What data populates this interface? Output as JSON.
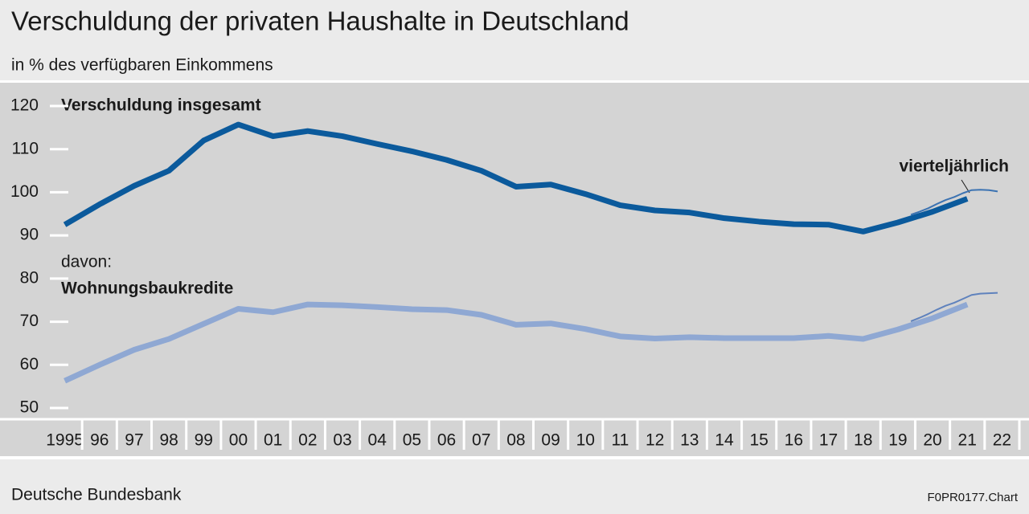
{
  "chart_data": {
    "type": "line",
    "title": "Verschuldung der privaten Haushalte in Deutschland",
    "subtitle": "in % des verfügbaren Einkommens",
    "source": "Deutsche Bundesbank",
    "chart_id": "F0PR0177.Chart",
    "annotations": {
      "davon": "davon:",
      "quarterly": "vierteljährlich"
    },
    "xlim": [
      1994.5,
      2022.5
    ],
    "xticks": [
      {
        "value": 1995,
        "label": "1995"
      },
      {
        "value": 1996,
        "label": "96"
      },
      {
        "value": 1997,
        "label": "97"
      },
      {
        "value": 1998,
        "label": "98"
      },
      {
        "value": 1999,
        "label": "99"
      },
      {
        "value": 2000,
        "label": "00"
      },
      {
        "value": 2001,
        "label": "01"
      },
      {
        "value": 2002,
        "label": "02"
      },
      {
        "value": 2003,
        "label": "03"
      },
      {
        "value": 2004,
        "label": "04"
      },
      {
        "value": 2005,
        "label": "05"
      },
      {
        "value": 2006,
        "label": "06"
      },
      {
        "value": 2007,
        "label": "07"
      },
      {
        "value": 2008,
        "label": "08"
      },
      {
        "value": 2009,
        "label": "09"
      },
      {
        "value": 2010,
        "label": "10"
      },
      {
        "value": 2011,
        "label": "11"
      },
      {
        "value": 2012,
        "label": "12"
      },
      {
        "value": 2013,
        "label": "13"
      },
      {
        "value": 2014,
        "label": "14"
      },
      {
        "value": 2015,
        "label": "15"
      },
      {
        "value": 2016,
        "label": "16"
      },
      {
        "value": 2017,
        "label": "17"
      },
      {
        "value": 2018,
        "label": "18"
      },
      {
        "value": 2019,
        "label": "19"
      },
      {
        "value": 2020,
        "label": "20"
      },
      {
        "value": 2021,
        "label": "21"
      },
      {
        "value": 2022,
        "label": "22"
      }
    ],
    "ylim": [
      50,
      120
    ],
    "yticks": [
      50,
      60,
      70,
      80,
      90,
      100,
      110,
      120
    ],
    "series": [
      {
        "name": "Verschuldung insgesamt",
        "color": "#0b5a9c",
        "width": 7,
        "x": [
          1995,
          1996,
          1997,
          1998,
          1999,
          2000,
          2001,
          2002,
          2003,
          2004,
          2005,
          2006,
          2007,
          2008,
          2009,
          2010,
          2011,
          2012,
          2013,
          2014,
          2015,
          2016,
          2017,
          2018,
          2019,
          2020,
          2021
        ],
        "values": [
          92.5,
          97.2,
          101.5,
          105,
          112,
          115.7,
          113,
          114.2,
          113,
          111.2,
          109.5,
          107.5,
          105,
          101.3,
          101.8,
          99.6,
          97,
          95.8,
          95.3,
          94,
          93.2,
          92.6,
          92.5,
          90.9,
          93,
          95.5,
          98.5
        ]
      },
      {
        "color": "#3c73b2",
        "width": 2,
        "x": [
          2019.375,
          2019.625,
          2019.875,
          2020.125,
          2020.375,
          2020.625,
          2020.875,
          2021.125,
          2021.375,
          2021.625,
          2021.875
        ],
        "values": [
          94.8,
          95.5,
          96.3,
          97.3,
          98.2,
          98.9,
          99.8,
          100.5,
          100.6,
          100.5,
          100.2
        ]
      },
      {
        "name": "Wohnungsbaukredite",
        "color": "#8fa8d3",
        "width": 7,
        "x": [
          1995,
          1996,
          1997,
          1998,
          1999,
          2000,
          2001,
          2002,
          2003,
          2004,
          2005,
          2006,
          2007,
          2008,
          2009,
          2010,
          2011,
          2012,
          2013,
          2014,
          2015,
          2016,
          2017,
          2018,
          2019,
          2020,
          2021
        ],
        "values": [
          56.3,
          60,
          63.5,
          66,
          69.5,
          73,
          72.2,
          74,
          73.8,
          73.4,
          72.9,
          72.7,
          71.6,
          69.3,
          69.6,
          68.3,
          66.6,
          66.1,
          66.4,
          66.2,
          66.2,
          66.2,
          66.7,
          66,
          68.2,
          70.8,
          74
        ]
      },
      {
        "color": "#5f82bd",
        "width": 2,
        "x": [
          2019.375,
          2019.625,
          2019.875,
          2020.125,
          2020.375,
          2020.625,
          2020.875,
          2021.125,
          2021.375,
          2021.625,
          2021.875
        ],
        "values": [
          70.1,
          70.9,
          71.8,
          72.8,
          73.7,
          74.4,
          75.3,
          76.2,
          76.5,
          76.6,
          76.7
        ]
      }
    ]
  }
}
